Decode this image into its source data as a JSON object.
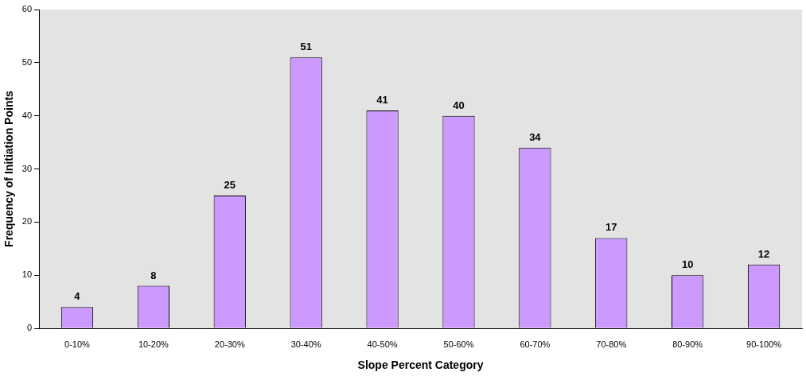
{
  "chart_data": {
    "type": "bar",
    "xlabel": "Slope Percent Category",
    "ylabel": "Frequency of Initiation Points",
    "categories": [
      "0-10%",
      "10-20%",
      "20-30%",
      "30-40%",
      "40-50%",
      "50-60%",
      "60-70%",
      "70-80%",
      "80-90%",
      "90-100%"
    ],
    "values": [
      4,
      8,
      25,
      51,
      41,
      40,
      34,
      17,
      10,
      12
    ],
    "color": "#cc99ff",
    "ylim": [
      0,
      60
    ],
    "yticks": [
      0,
      10,
      20,
      30,
      40,
      50,
      60
    ],
    "grid": false,
    "legend": false,
    "data_labels": true
  }
}
